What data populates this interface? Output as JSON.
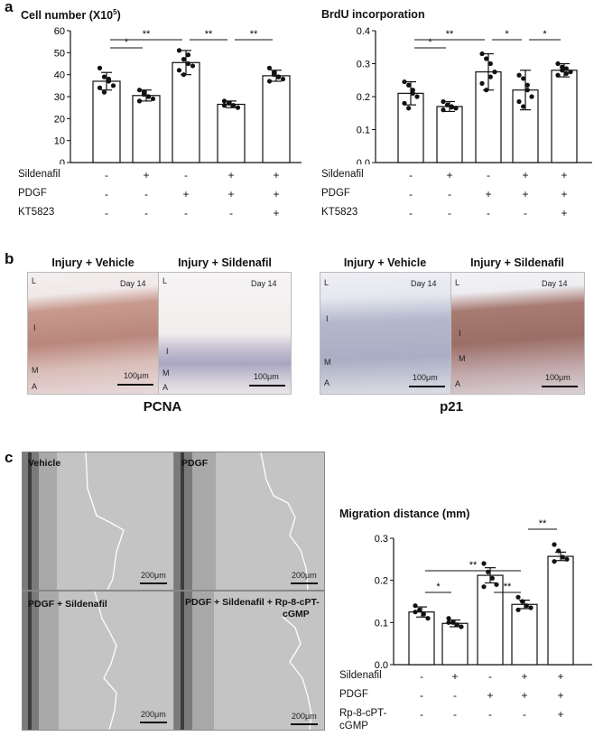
{
  "panels": {
    "a_letter": "a",
    "b_letter": "b",
    "c_letter": "c"
  },
  "conditions_a": {
    "rows": [
      {
        "label": "Sildenafil",
        "signs": [
          "-",
          "+",
          "-",
          "+",
          "+"
        ]
      },
      {
        "label": "PDGF",
        "signs": [
          "-",
          "-",
          "+",
          "+",
          "+"
        ]
      },
      {
        "label": "KT5823",
        "signs": [
          "-",
          "-",
          "-",
          "-",
          "+"
        ]
      }
    ]
  },
  "conditions_c": {
    "rows": [
      {
        "label": "Sildenafil",
        "signs": [
          "-",
          "+",
          "-",
          "+",
          "+"
        ]
      },
      {
        "label": "PDGF",
        "signs": [
          "-",
          "-",
          "+",
          "+",
          "+"
        ]
      },
      {
        "label": "Rp-8-cPT-",
        "label2": "cGMP",
        "signs": [
          "-",
          "-",
          "-",
          "-",
          "+"
        ]
      }
    ]
  },
  "micrographs": {
    "pcna": {
      "left_title": "Injury + Vehicle",
      "right_title": "Injury + Sildenafil",
      "day": "Day 14",
      "scale": "100μm",
      "layers": [
        "L",
        "I",
        "M",
        "A"
      ],
      "stain": "PCNA"
    },
    "p21": {
      "left_title": "Injury + Vehicle",
      "right_title": "Injury + Sildenafil",
      "day": "Day 14",
      "scale": "100μm",
      "layers": [
        "L",
        "I",
        "M",
        "A"
      ],
      "stain": "p21"
    }
  },
  "migration_images": {
    "vehicle": "Vehicle",
    "pdgf": "PDGF",
    "pdgf_sil": "PDGF  + Sildenafil",
    "pdgf_sil_rp": "PDGF  + Sildenafil + Rp-8-cPT-",
    "pdgf_sil_rp2": "cGMP",
    "scale": "200μm"
  },
  "chart_data": [
    {
      "type": "bar",
      "title": "Cell number (X10",
      "title_sup": "5",
      "title_end": ")",
      "categories": [
        "1",
        "2",
        "3",
        "4",
        "5"
      ],
      "values": [
        37,
        30.5,
        45.5,
        26.5,
        39.5
      ],
      "errors": [
        4,
        2.5,
        5.5,
        1.5,
        2.5
      ],
      "points": [
        [
          43,
          39,
          37,
          35,
          34,
          32,
          38
        ],
        [
          33,
          31,
          30,
          29,
          28,
          32,
          30
        ],
        [
          51,
          47,
          45,
          44,
          42,
          40,
          49
        ],
        [
          28,
          27,
          26,
          25,
          26,
          27,
          26
        ],
        [
          43,
          41,
          39,
          38,
          37,
          40,
          39
        ]
      ],
      "ylim": [
        0,
        60
      ],
      "yticks": [
        0,
        10,
        20,
        30,
        40,
        50,
        60
      ],
      "significance": [
        {
          "from": 0,
          "to": 1,
          "level": 1,
          "label": "*"
        },
        {
          "from": 0,
          "to": 2,
          "level": 2,
          "label": "**"
        },
        {
          "from": 2,
          "to": 3,
          "level": 2,
          "label": "**"
        },
        {
          "from": 3,
          "to": 4,
          "level": 2,
          "label": "**"
        }
      ]
    },
    {
      "type": "bar",
      "title": "BrdU  incorporation",
      "categories": [
        "1",
        "2",
        "3",
        "4",
        "5"
      ],
      "values": [
        0.21,
        0.17,
        0.275,
        0.22,
        0.28
      ],
      "errors": [
        0.035,
        0.015,
        0.055,
        0.06,
        0.02
      ],
      "points": [
        [
          0.245,
          0.235,
          0.21,
          0.2,
          0.18,
          0.165,
          0.22
        ],
        [
          0.185,
          0.175,
          0.17,
          0.165,
          0.16,
          0.175,
          0.168
        ],
        [
          0.33,
          0.315,
          0.3,
          0.275,
          0.24,
          0.22,
          0.26
        ],
        [
          0.265,
          0.255,
          0.235,
          0.2,
          0.185,
          0.17,
          0.22
        ],
        [
          0.3,
          0.29,
          0.285,
          0.275,
          0.265,
          0.28,
          0.27
        ]
      ],
      "ylim": [
        0,
        0.4
      ],
      "yticks": [
        0.0,
        0.1,
        0.2,
        0.3,
        0.4
      ],
      "ytick_labels": [
        "0.0",
        "0.1",
        "0.2",
        "0.3",
        "0.4"
      ],
      "significance": [
        {
          "from": 0,
          "to": 1,
          "level": 1,
          "label": "*"
        },
        {
          "from": 0,
          "to": 2,
          "level": 2,
          "label": "**"
        },
        {
          "from": 2,
          "to": 3,
          "level": 2,
          "label": "*"
        },
        {
          "from": 3,
          "to": 4,
          "level": 2,
          "label": "*"
        }
      ]
    },
    {
      "type": "bar",
      "title": "Migration distance (mm)",
      "categories": [
        "1",
        "2",
        "3",
        "4",
        "5"
      ],
      "values": [
        0.125,
        0.098,
        0.212,
        0.143,
        0.257
      ],
      "errors": [
        0.012,
        0.008,
        0.018,
        0.01,
        0.01
      ],
      "points": [
        [
          0.14,
          0.13,
          0.12,
          0.11,
          0.125
        ],
        [
          0.11,
          0.1,
          0.095,
          0.09,
          0.1
        ],
        [
          0.24,
          0.22,
          0.205,
          0.19,
          0.185
        ],
        [
          0.16,
          0.15,
          0.14,
          0.135,
          0.13
        ],
        [
          0.285,
          0.27,
          0.255,
          0.25,
          0.245
        ]
      ],
      "ylim": [
        0,
        0.3
      ],
      "yticks": [
        0.0,
        0.1,
        0.2,
        0.3
      ],
      "ytick_labels": [
        "0.0",
        "0.1",
        "0.2",
        "0.3"
      ],
      "significance": [
        {
          "from": 0,
          "to": 1,
          "level": 1,
          "label": "*"
        },
        {
          "from": 0,
          "to": 3,
          "level": 2,
          "label": "**"
        },
        {
          "from": 2,
          "to": 3,
          "level": 1,
          "label": "**"
        },
        {
          "from": 3,
          "to": 4,
          "level": 3,
          "label": "**"
        }
      ]
    }
  ]
}
